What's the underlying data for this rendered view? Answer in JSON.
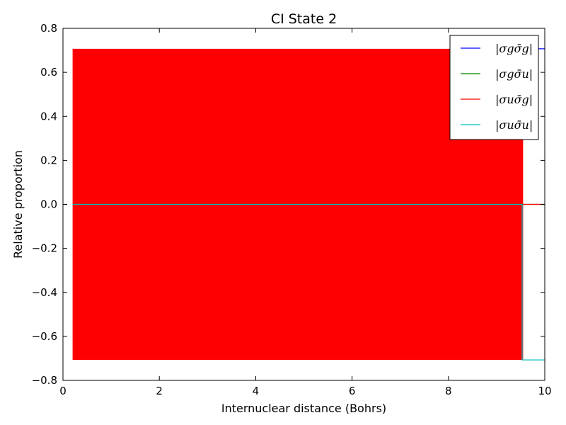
{
  "chart_data": {
    "type": "line",
    "title": "CI State 2",
    "xlabel": "Internuclear distance (Bohrs)",
    "ylabel": "Relative proportion",
    "xlim": [
      0,
      10
    ],
    "ylim": [
      -0.8,
      0.8
    ],
    "x_ticks": [
      0,
      2,
      4,
      6,
      8,
      10
    ],
    "y_ticks": [
      -0.8,
      -0.6,
      -0.4,
      -0.2,
      0.0,
      0.2,
      0.4,
      0.6,
      0.8
    ],
    "x_tick_labels": [
      "0",
      "2",
      "4",
      "6",
      "8",
      "10"
    ],
    "y_tick_labels": [
      "−0.8",
      "−0.6",
      "−0.4",
      "−0.2",
      "0.0",
      "0.2",
      "0.4",
      "0.6",
      "0.8"
    ],
    "grid": false,
    "legend_position": "top-right",
    "oscillation": {
      "x_start": 0.2,
      "x_end": 9.55,
      "upper": 0.707,
      "lower": -0.707,
      "color": "#ff0000"
    },
    "series": [
      {
        "name": "|σgσ̄g|",
        "color": "#0000ff",
        "points": [
          [
            9.56,
            0.707
          ],
          [
            10.0,
            0.707
          ]
        ]
      },
      {
        "name": "|σgσ̄u|",
        "color": "#008000",
        "points": [
          [
            0.2,
            0.0
          ],
          [
            10.0,
            0.0
          ]
        ]
      },
      {
        "name": "|σuσ̄g|",
        "color": "#ff0000",
        "points": [
          [
            9.55,
            0.0
          ],
          [
            10.0,
            0.0
          ]
        ]
      },
      {
        "name": "|σuσ̄u|",
        "color": "#00bfbf",
        "points": [
          [
            0.2,
            0.0
          ],
          [
            9.53,
            0.0
          ],
          [
            9.53,
            -0.707
          ],
          [
            10.0,
            -0.707
          ]
        ]
      }
    ]
  }
}
